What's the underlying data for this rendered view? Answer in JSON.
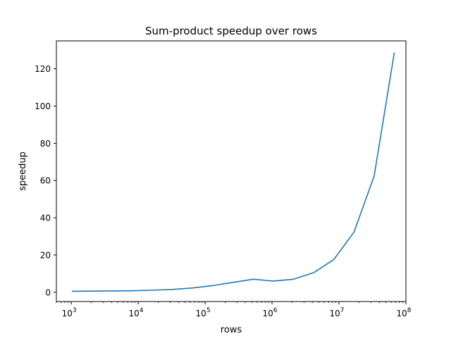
{
  "chart_data": {
    "type": "line",
    "title": "Sum-product speedup over rows",
    "xlabel": "rows",
    "ylabel": "speedup",
    "xscale": "log",
    "xlim": [
      600,
      100000000
    ],
    "ylim": [
      -5,
      135
    ],
    "grid": false,
    "line_color": "#1f77b4",
    "x_ticks": [
      {
        "value": 1000,
        "base": "10",
        "exp": "3"
      },
      {
        "value": 10000,
        "base": "10",
        "exp": "4"
      },
      {
        "value": 100000,
        "base": "10",
        "exp": "5"
      },
      {
        "value": 1000000,
        "base": "10",
        "exp": "6"
      },
      {
        "value": 10000000,
        "base": "10",
        "exp": "7"
      },
      {
        "value": 100000000,
        "base": "10",
        "exp": "8"
      }
    ],
    "y_ticks": [
      {
        "value": 0,
        "label": "0"
      },
      {
        "value": 20,
        "label": "20"
      },
      {
        "value": 40,
        "label": "40"
      },
      {
        "value": 60,
        "label": "60"
      },
      {
        "value": 80,
        "label": "80"
      },
      {
        "value": 100,
        "label": "100"
      },
      {
        "value": 120,
        "label": "120"
      }
    ],
    "series": [
      {
        "x": [
          1024,
          2048,
          4096,
          8192,
          16384,
          32768,
          65536,
          131072,
          262144,
          524288,
          1048576,
          2097152,
          4194304,
          8388608,
          16777216,
          33554432,
          67108864
        ],
        "y": [
          0.5,
          0.6,
          0.7,
          0.8,
          1.1,
          1.5,
          2.3,
          3.6,
          5.3,
          7.0,
          6.0,
          7.0,
          10.5,
          17.6,
          32.3,
          62.4,
          128.7
        ]
      }
    ]
  }
}
